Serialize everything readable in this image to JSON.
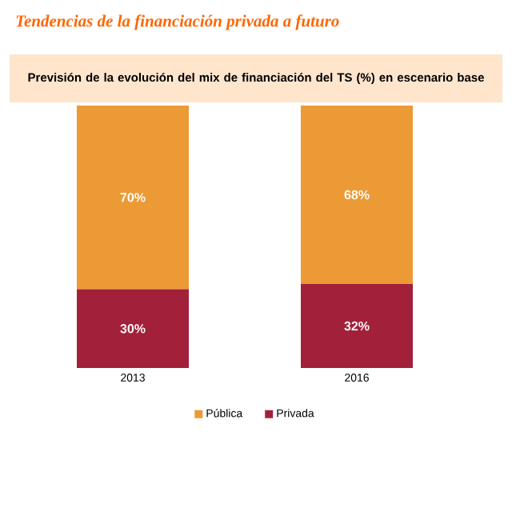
{
  "chart_data": {
    "type": "bar",
    "title": "Tendencias de la financiación privada a futuro",
    "subtitle": "Previsión de la evolución del mix de financiación del TS (%) en escenario base",
    "categories": [
      "2013",
      "2016"
    ],
    "stacked": true,
    "ylim": [
      0,
      100
    ],
    "tick_labels": "x",
    "legend": "bottom",
    "series": [
      {
        "name": "Privada",
        "color": "#a3203a",
        "values": [
          30,
          32
        ],
        "value_labels": [
          "30%",
          "32%"
        ]
      },
      {
        "name": "Pública",
        "color": "#eb9a35",
        "values": [
          70,
          68
        ],
        "value_labels": [
          "70%",
          "68%"
        ]
      }
    ]
  }
}
